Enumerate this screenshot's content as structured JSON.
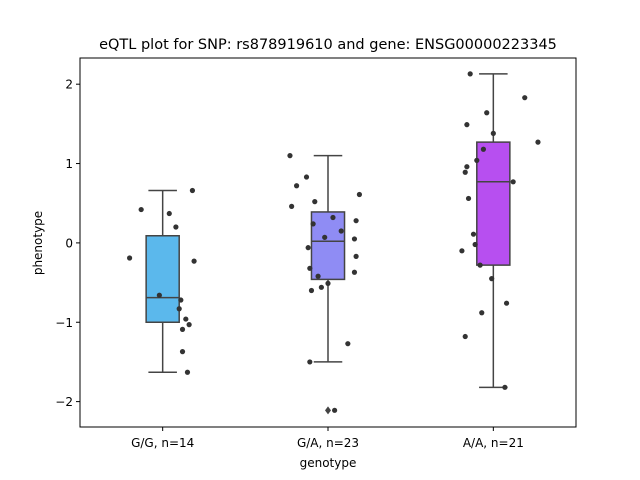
{
  "chart_data": {
    "type": "box",
    "title": "eQTL plot for SNP: rs878919610 and gene: ENSG00000223345",
    "xlabel": "genotype",
    "ylabel": "phenotype",
    "ylim": [
      -2.32,
      2.33
    ],
    "yticks": [
      -2,
      -1,
      0,
      1,
      2
    ],
    "yticklabels": [
      "−2",
      "−1",
      "0",
      "1",
      "2"
    ],
    "categories": [
      "G/G, n=14",
      "G/A, n=23",
      "A/A, n=21"
    ],
    "grid": false,
    "legend": "none",
    "boxes": [
      {
        "category": "G/G, n=14",
        "color": "#5bb8ec",
        "whisker_low": -1.63,
        "q1": -1.0,
        "median": -0.69,
        "q3": 0.09,
        "whisker_high": 0.66,
        "outliers": [],
        "points": [
          {
            "dx": -0.13,
            "y": 0.42
          },
          {
            "dx": 0.04,
            "y": 0.37
          },
          {
            "dx": 0.08,
            "y": 0.2
          },
          {
            "dx": 0.18,
            "y": 0.66
          },
          {
            "dx": -0.2,
            "y": -0.19
          },
          {
            "dx": 0.19,
            "y": -0.23
          },
          {
            "dx": -0.02,
            "y": -0.66
          },
          {
            "dx": 0.11,
            "y": -0.72
          },
          {
            "dx": 0.1,
            "y": -0.83
          },
          {
            "dx": 0.14,
            "y": -0.96
          },
          {
            "dx": 0.16,
            "y": -1.03
          },
          {
            "dx": 0.12,
            "y": -1.09
          },
          {
            "dx": 0.12,
            "y": -1.37
          },
          {
            "dx": 0.15,
            "y": -1.63
          }
        ]
      },
      {
        "category": "G/A, n=23",
        "color": "#8f8cf4",
        "whisker_low": -1.5,
        "q1": -0.46,
        "median": 0.02,
        "q3": 0.39,
        "whisker_high": 1.1,
        "outliers": [
          -2.11
        ],
        "points": [
          {
            "dx": -0.23,
            "y": 1.1
          },
          {
            "dx": -0.13,
            "y": 0.83
          },
          {
            "dx": -0.19,
            "y": 0.72
          },
          {
            "dx": 0.19,
            "y": 0.61
          },
          {
            "dx": -0.08,
            "y": 0.52
          },
          {
            "dx": -0.22,
            "y": 0.46
          },
          {
            "dx": 0.03,
            "y": 0.32
          },
          {
            "dx": 0.17,
            "y": 0.28
          },
          {
            "dx": -0.09,
            "y": 0.24
          },
          {
            "dx": 0.08,
            "y": 0.15
          },
          {
            "dx": -0.02,
            "y": 0.07
          },
          {
            "dx": 0.16,
            "y": 0.05
          },
          {
            "dx": -0.12,
            "y": -0.06
          },
          {
            "dx": 0.17,
            "y": -0.17
          },
          {
            "dx": -0.11,
            "y": -0.32
          },
          {
            "dx": 0.16,
            "y": -0.37
          },
          {
            "dx": -0.06,
            "y": -0.42
          },
          {
            "dx": 0.0,
            "y": -0.51
          },
          {
            "dx": -0.04,
            "y": -0.56
          },
          {
            "dx": -0.1,
            "y": -0.6
          },
          {
            "dx": 0.12,
            "y": -1.27
          },
          {
            "dx": -0.11,
            "y": -1.5
          },
          {
            "dx": 0.04,
            "y": -2.11
          }
        ]
      },
      {
        "category": "A/A, n=21",
        "color": "#b74ff0",
        "whisker_low": -1.82,
        "q1": -0.28,
        "median": 0.77,
        "q3": 1.27,
        "whisker_high": 2.13,
        "outliers": [],
        "points": [
          {
            "dx": -0.14,
            "y": 2.13
          },
          {
            "dx": 0.19,
            "y": 1.83
          },
          {
            "dx": -0.04,
            "y": 1.64
          },
          {
            "dx": -0.16,
            "y": 1.49
          },
          {
            "dx": 0.0,
            "y": 1.38
          },
          {
            "dx": 0.27,
            "y": 1.27
          },
          {
            "dx": -0.06,
            "y": 1.18
          },
          {
            "dx": -0.1,
            "y": 1.04
          },
          {
            "dx": -0.16,
            "y": 0.96
          },
          {
            "dx": -0.17,
            "y": 0.89
          },
          {
            "dx": 0.12,
            "y": 0.77
          },
          {
            "dx": -0.15,
            "y": 0.56
          },
          {
            "dx": -0.12,
            "y": 0.11
          },
          {
            "dx": -0.11,
            "y": -0.02
          },
          {
            "dx": -0.19,
            "y": -0.1
          },
          {
            "dx": -0.08,
            "y": -0.28
          },
          {
            "dx": -0.01,
            "y": -0.45
          },
          {
            "dx": 0.08,
            "y": -0.76
          },
          {
            "dx": -0.07,
            "y": -0.88
          },
          {
            "dx": -0.17,
            "y": -1.18
          },
          {
            "dx": 0.07,
            "y": -1.82
          }
        ]
      }
    ]
  }
}
